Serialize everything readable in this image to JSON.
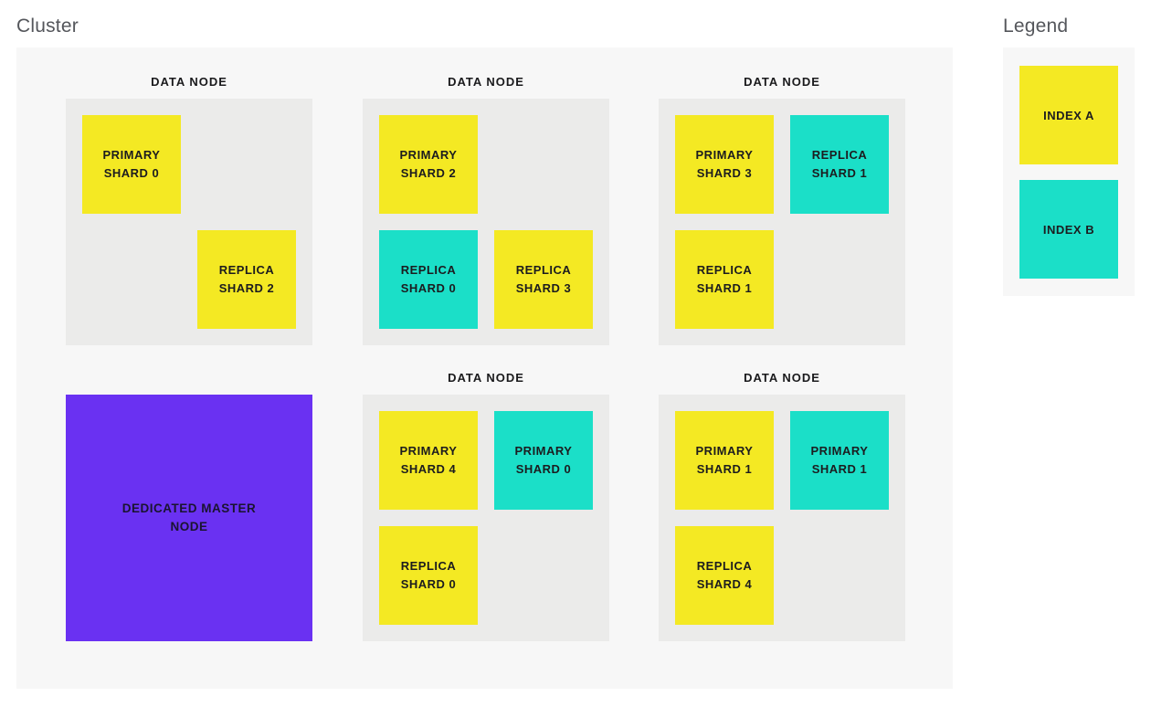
{
  "page": {
    "cluster_title": "Cluster",
    "legend_title": "Legend"
  },
  "colors": {
    "index_a": "#F4E923",
    "index_b": "#1BDFC8",
    "master": "#6A31F2",
    "node_bg": "#EBEBEA",
    "panel_bg": "#F7F7F7",
    "title_text": "#54565B",
    "dark_text": "#1C1C1F"
  },
  "cluster": {
    "nodes": [
      {
        "label": "DATA NODE",
        "shards": [
          {
            "label": "PRIMARY SHARD 0",
            "index": "INDEX A"
          },
          {
            "label": "REPLICA SHARD 2",
            "index": "INDEX A"
          }
        ]
      },
      {
        "label": "DATA NODE",
        "shards": [
          {
            "label": "PRIMARY SHARD 2",
            "index": "INDEX A"
          },
          {
            "label": "REPLICA SHARD 0",
            "index": "INDEX B"
          },
          {
            "label": "REPLICA SHARD 3",
            "index": "INDEX A"
          }
        ]
      },
      {
        "label": "DATA NODE",
        "shards": [
          {
            "label": "PRIMARY SHARD 3",
            "index": "INDEX A"
          },
          {
            "label": "REPLICA SHARD 1",
            "index": "INDEX B"
          },
          {
            "label": "REPLICA SHARD 1",
            "index": "INDEX A"
          }
        ]
      },
      {
        "label": "DATA NODE",
        "shards": [
          {
            "label": "PRIMARY SHARD 4",
            "index": "INDEX A"
          },
          {
            "label": "PRIMARY SHARD 0",
            "index": "INDEX B"
          },
          {
            "label": "REPLICA SHARD 0",
            "index": "INDEX A"
          }
        ]
      },
      {
        "label": "DATA NODE",
        "shards": [
          {
            "label": "PRIMARY SHARD 1",
            "index": "INDEX A"
          },
          {
            "label": "PRIMARY SHARD 1",
            "index": "INDEX B"
          },
          {
            "label": "REPLICA SHARD 4",
            "index": "INDEX A"
          }
        ]
      }
    ],
    "master_node": {
      "label": "DEDICATED MASTER NODE"
    }
  },
  "legend": {
    "items": [
      {
        "label": "INDEX A"
      },
      {
        "label": "INDEX B"
      }
    ]
  }
}
